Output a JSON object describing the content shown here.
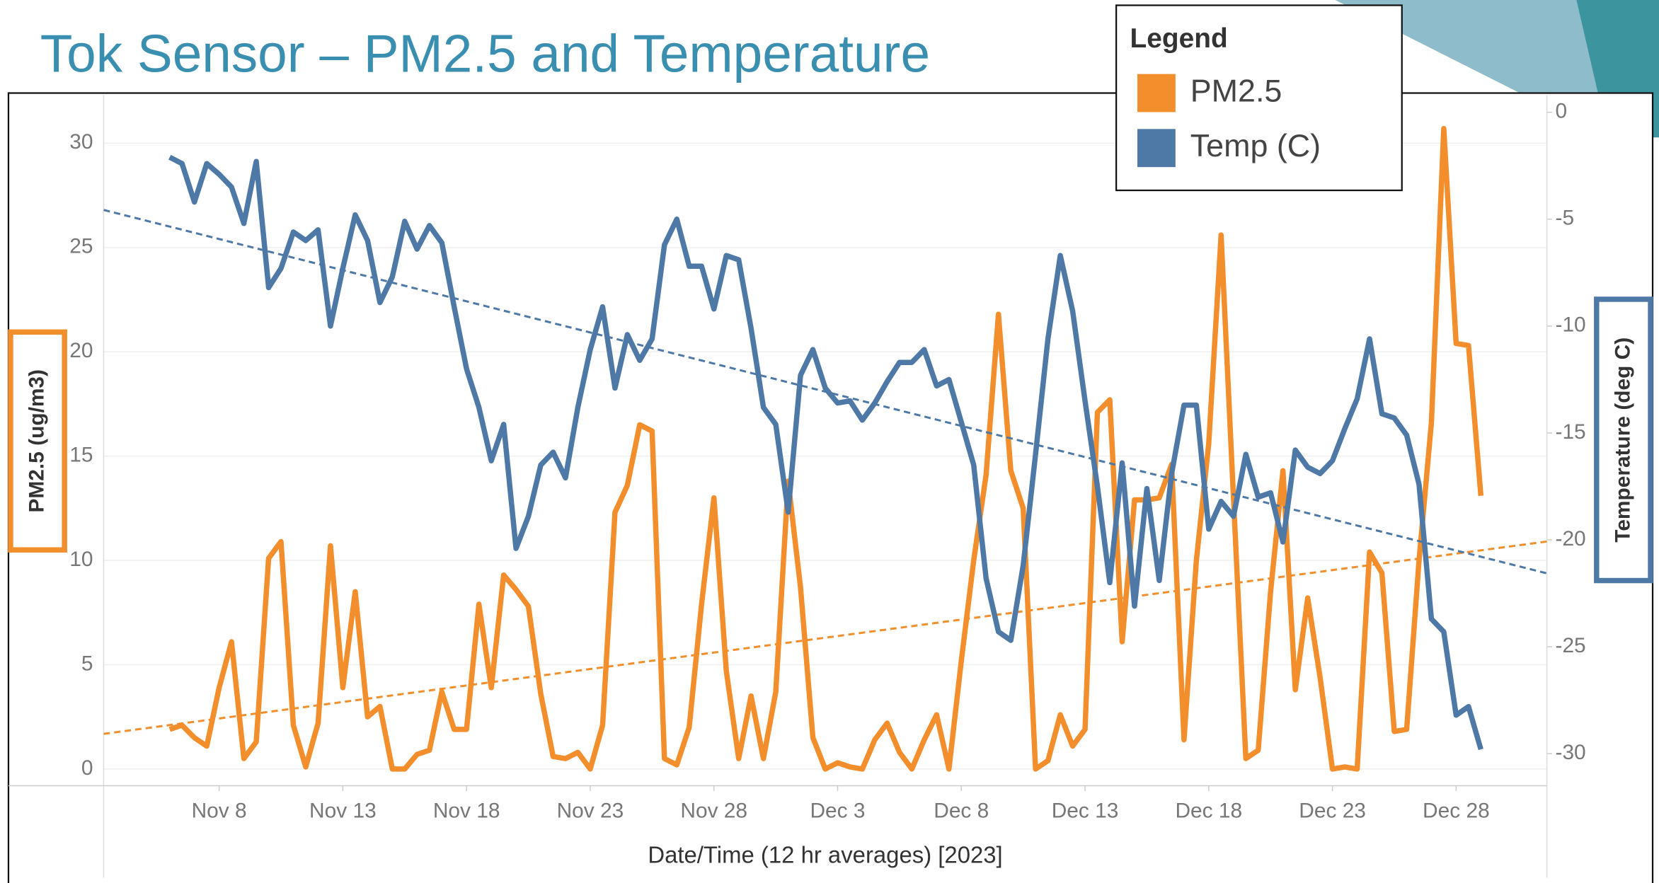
{
  "chart_data": {
    "type": "line",
    "title": "Tok Sensor – PM2.5 and Temperature",
    "legend_title": "Legend",
    "xlabel": "Date/Time (12 hr averages) [2023]",
    "ylabel": "PM2.5 (ug/m3)",
    "y2label": "Temperature (deg C)",
    "trendlines": true,
    "grid": true,
    "x": [
      "2023-11-06 00:00",
      "2023-11-06 12:00",
      "2023-11-07 00:00",
      "2023-11-07 12:00",
      "2023-11-08 00:00",
      "2023-11-08 12:00",
      "2023-11-09 00:00",
      "2023-11-09 12:00",
      "2023-11-10 00:00",
      "2023-11-10 12:00",
      "2023-11-11 00:00",
      "2023-11-11 12:00",
      "2023-11-12 00:00",
      "2023-11-12 12:00",
      "2023-11-13 00:00",
      "2023-11-13 12:00",
      "2023-11-14 00:00",
      "2023-11-14 12:00",
      "2023-11-15 00:00",
      "2023-11-15 12:00",
      "2023-11-16 00:00",
      "2023-11-16 12:00",
      "2023-11-17 00:00",
      "2023-11-17 12:00",
      "2023-11-18 00:00",
      "2023-11-18 12:00",
      "2023-11-19 00:00",
      "2023-11-19 12:00",
      "2023-11-20 00:00",
      "2023-11-20 12:00",
      "2023-11-21 00:00",
      "2023-11-21 12:00",
      "2023-11-22 00:00",
      "2023-11-22 12:00",
      "2023-11-23 00:00",
      "2023-11-23 12:00",
      "2023-11-24 00:00",
      "2023-11-24 12:00",
      "2023-11-25 00:00",
      "2023-11-25 12:00",
      "2023-11-26 00:00",
      "2023-11-26 12:00",
      "2023-11-27 00:00",
      "2023-11-27 12:00",
      "2023-11-28 00:00",
      "2023-11-28 12:00",
      "2023-11-29 00:00",
      "2023-11-29 12:00",
      "2023-11-30 00:00",
      "2023-11-30 12:00",
      "2023-12-01 00:00",
      "2023-12-01 12:00",
      "2023-12-02 00:00",
      "2023-12-02 12:00",
      "2023-12-03 00:00",
      "2023-12-03 12:00",
      "2023-12-04 00:00",
      "2023-12-04 12:00",
      "2023-12-05 00:00",
      "2023-12-05 12:00",
      "2023-12-06 00:00",
      "2023-12-06 12:00",
      "2023-12-07 00:00",
      "2023-12-07 12:00",
      "2023-12-08 00:00",
      "2023-12-08 12:00",
      "2023-12-09 00:00",
      "2023-12-09 12:00",
      "2023-12-10 00:00",
      "2023-12-10 12:00",
      "2023-12-11 00:00",
      "2023-12-11 12:00",
      "2023-12-12 00:00",
      "2023-12-12 12:00",
      "2023-12-13 00:00",
      "2023-12-13 12:00",
      "2023-12-14 00:00",
      "2023-12-14 12:00",
      "2023-12-15 00:00",
      "2023-12-15 12:00",
      "2023-12-16 00:00",
      "2023-12-16 12:00",
      "2023-12-17 00:00",
      "2023-12-17 12:00",
      "2023-12-18 00:00",
      "2023-12-18 12:00",
      "2023-12-19 00:00",
      "2023-12-19 12:00",
      "2023-12-20 00:00",
      "2023-12-20 12:00",
      "2023-12-21 00:00",
      "2023-12-21 12:00",
      "2023-12-22 00:00",
      "2023-12-22 12:00",
      "2023-12-23 00:00",
      "2023-12-23 12:00",
      "2023-12-24 00:00",
      "2023-12-24 12:00",
      "2023-12-25 00:00",
      "2023-12-25 12:00",
      "2023-12-26 00:00",
      "2023-12-26 12:00",
      "2023-12-27 00:00",
      "2023-12-27 12:00",
      "2023-12-28 00:00",
      "2023-12-28 12:00",
      "2023-12-29 00:00"
    ],
    "series": [
      {
        "name": "PM2.5",
        "color": "#f28e2b",
        "values": [
          1.9,
          2.1,
          1.5,
          1.1,
          3.9,
          6.1,
          0.5,
          1.3,
          10.1,
          10.9,
          2.1,
          0.1,
          2.2,
          10.7,
          3.9,
          8.5,
          2.5,
          3.0,
          0,
          0,
          0.7,
          0.9,
          3.7,
          1.9,
          1.9,
          7.9,
          3.9,
          9.3,
          8.6,
          7.8,
          3.6,
          0.6,
          0.5,
          0.8,
          0,
          2.1,
          12.3,
          13.6,
          16.5,
          16.2,
          0.5,
          0.2,
          2.0,
          7.9,
          13.0,
          4.7,
          0.5,
          3.5,
          0.5,
          3.7,
          13.8,
          8.7,
          1.5,
          0,
          0.3,
          0.1,
          0,
          1.4,
          2.2,
          0.8,
          0,
          1.4,
          2.6,
          0,
          5.2,
          10,
          14.1,
          21.8,
          14.3,
          12.5,
          0,
          0.4,
          2.6,
          1.1,
          1.9,
          17.1,
          17.7,
          6.1,
          12.9,
          12.9,
          13.0,
          14.6,
          1.4,
          10,
          15.6,
          25.6,
          13,
          0.5,
          0.9,
          8.5,
          14.3,
          3.8,
          8.2,
          4.4,
          0,
          0.1,
          0,
          10.4,
          9.4,
          1.8,
          1.9,
          10,
          16.6,
          30.7,
          20.4,
          20.3,
          13.1
        ]
      },
      {
        "name": "Temp (C)",
        "color": "#4e79a7",
        "axis": "y2",
        "values": [
          -2.1,
          -2.4,
          -4.2,
          -2.4,
          -2.9,
          -3.5,
          -5.2,
          -2.3,
          -8.2,
          -7.3,
          -5.6,
          -6.0,
          -5.5,
          -10,
          -7.3,
          -4.8,
          -6.0,
          -8.9,
          -7.7,
          -5.1,
          -6.4,
          -5.3,
          -6.1,
          -9.1,
          -12,
          -13.8,
          -16.3,
          -14.6,
          -20.4,
          -18.9,
          -16.5,
          -15.9,
          -17.1,
          -13.8,
          -11.1,
          -9.1,
          -12.9,
          -10.4,
          -11.6,
          -10.6,
          -6.2,
          -5.0,
          -7.2,
          -7.2,
          -9.2,
          -6.7,
          -6.9,
          -10.1,
          -13.8,
          -14.6,
          -18.7,
          -12.3,
          -11.1,
          -12.9,
          -13.6,
          -13.5,
          -14.4,
          -13.6,
          -12.6,
          -11.7,
          -11.7,
          -11.1,
          -12.8,
          -12.5,
          -14.5,
          -16.5,
          -21.8,
          -24.3,
          -24.7,
          -21.2,
          -16,
          -10.6,
          -6.7,
          -9.3,
          -13.5,
          -17.5,
          -22,
          -16.4,
          -23.1,
          -17.6,
          -21.9,
          -16.9,
          -13.7,
          -13.7,
          -19.5,
          -18.2,
          -18.9,
          -16,
          -18,
          -17.8,
          -20.1,
          -15.8,
          -16.6,
          -16.9,
          -16.3,
          -14.8,
          -13.4,
          -10.6,
          -14.1,
          -14.3,
          -15.1,
          -17.4,
          -23.7,
          -24.3,
          -28.2,
          -27.8,
          -29.8
        ]
      }
    ],
    "xlim": [
      "2023-11-03 08:00",
      "2023-12-31 16:00"
    ],
    "xticks": [
      {
        "value": "2023-11-08 00:00",
        "label": "Nov 8"
      },
      {
        "value": "2023-11-13 00:00",
        "label": "Nov 13"
      },
      {
        "value": "2023-11-18 00:00",
        "label": "Nov 18"
      },
      {
        "value": "2023-11-23 00:00",
        "label": "Nov 23"
      },
      {
        "value": "2023-11-28 00:00",
        "label": "Nov 28"
      },
      {
        "value": "2023-12-03 00:00",
        "label": "Dec 3"
      },
      {
        "value": "2023-12-08 00:00",
        "label": "Dec 8"
      },
      {
        "value": "2023-12-13 00:00",
        "label": "Dec 13"
      },
      {
        "value": "2023-12-18 00:00",
        "label": "Dec 18"
      },
      {
        "value": "2023-12-23 00:00",
        "label": "Dec 23"
      },
      {
        "value": "2023-12-28 00:00",
        "label": "Dec 28"
      }
    ],
    "ylim": [
      -0.8,
      32.3
    ],
    "yticks": [
      0,
      5,
      10,
      15,
      20,
      25,
      30
    ],
    "y2lim": [
      -31.5,
      0.8
    ],
    "y2ticks": [
      0,
      -5,
      -10,
      -15,
      -20,
      -25,
      -30
    ]
  }
}
